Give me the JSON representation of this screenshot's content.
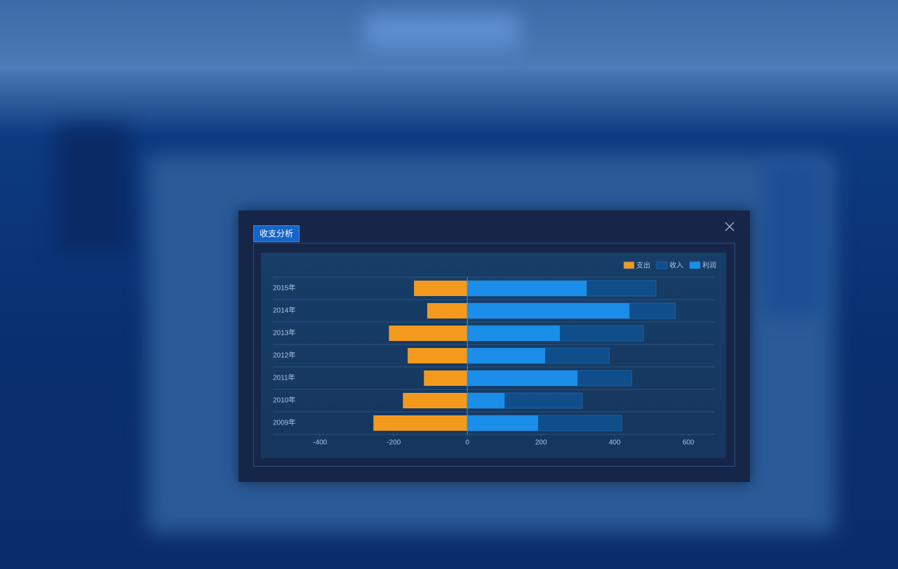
{
  "dialog": {
    "tab": "收支分析"
  },
  "chart_data": {
    "type": "diverging-bar",
    "categories": [
      "2015年",
      "2014年",
      "2013年",
      "2012年",
      "2011年",
      "2010年",
      "2009年"
    ],
    "series": [
      {
        "name": "支出",
        "color": "#f39a1c",
        "values": [
          -145,
          -109,
          -213,
          -162,
          -118,
          -175,
          -255
        ]
      },
      {
        "name": "收入",
        "color": "#0f4e8a",
        "values": [
          512,
          564,
          478,
          385,
          446,
          312,
          419
        ]
      },
      {
        "name": "利润",
        "color": "#1a8ee8",
        "values": [
          324,
          440,
          251,
          211,
          299,
          101,
          192
        ]
      }
    ],
    "xlim": [
      -528,
      672
    ],
    "xticks": [
      -400,
      -200,
      0,
      200,
      400,
      600
    ],
    "legend": "top-right"
  }
}
